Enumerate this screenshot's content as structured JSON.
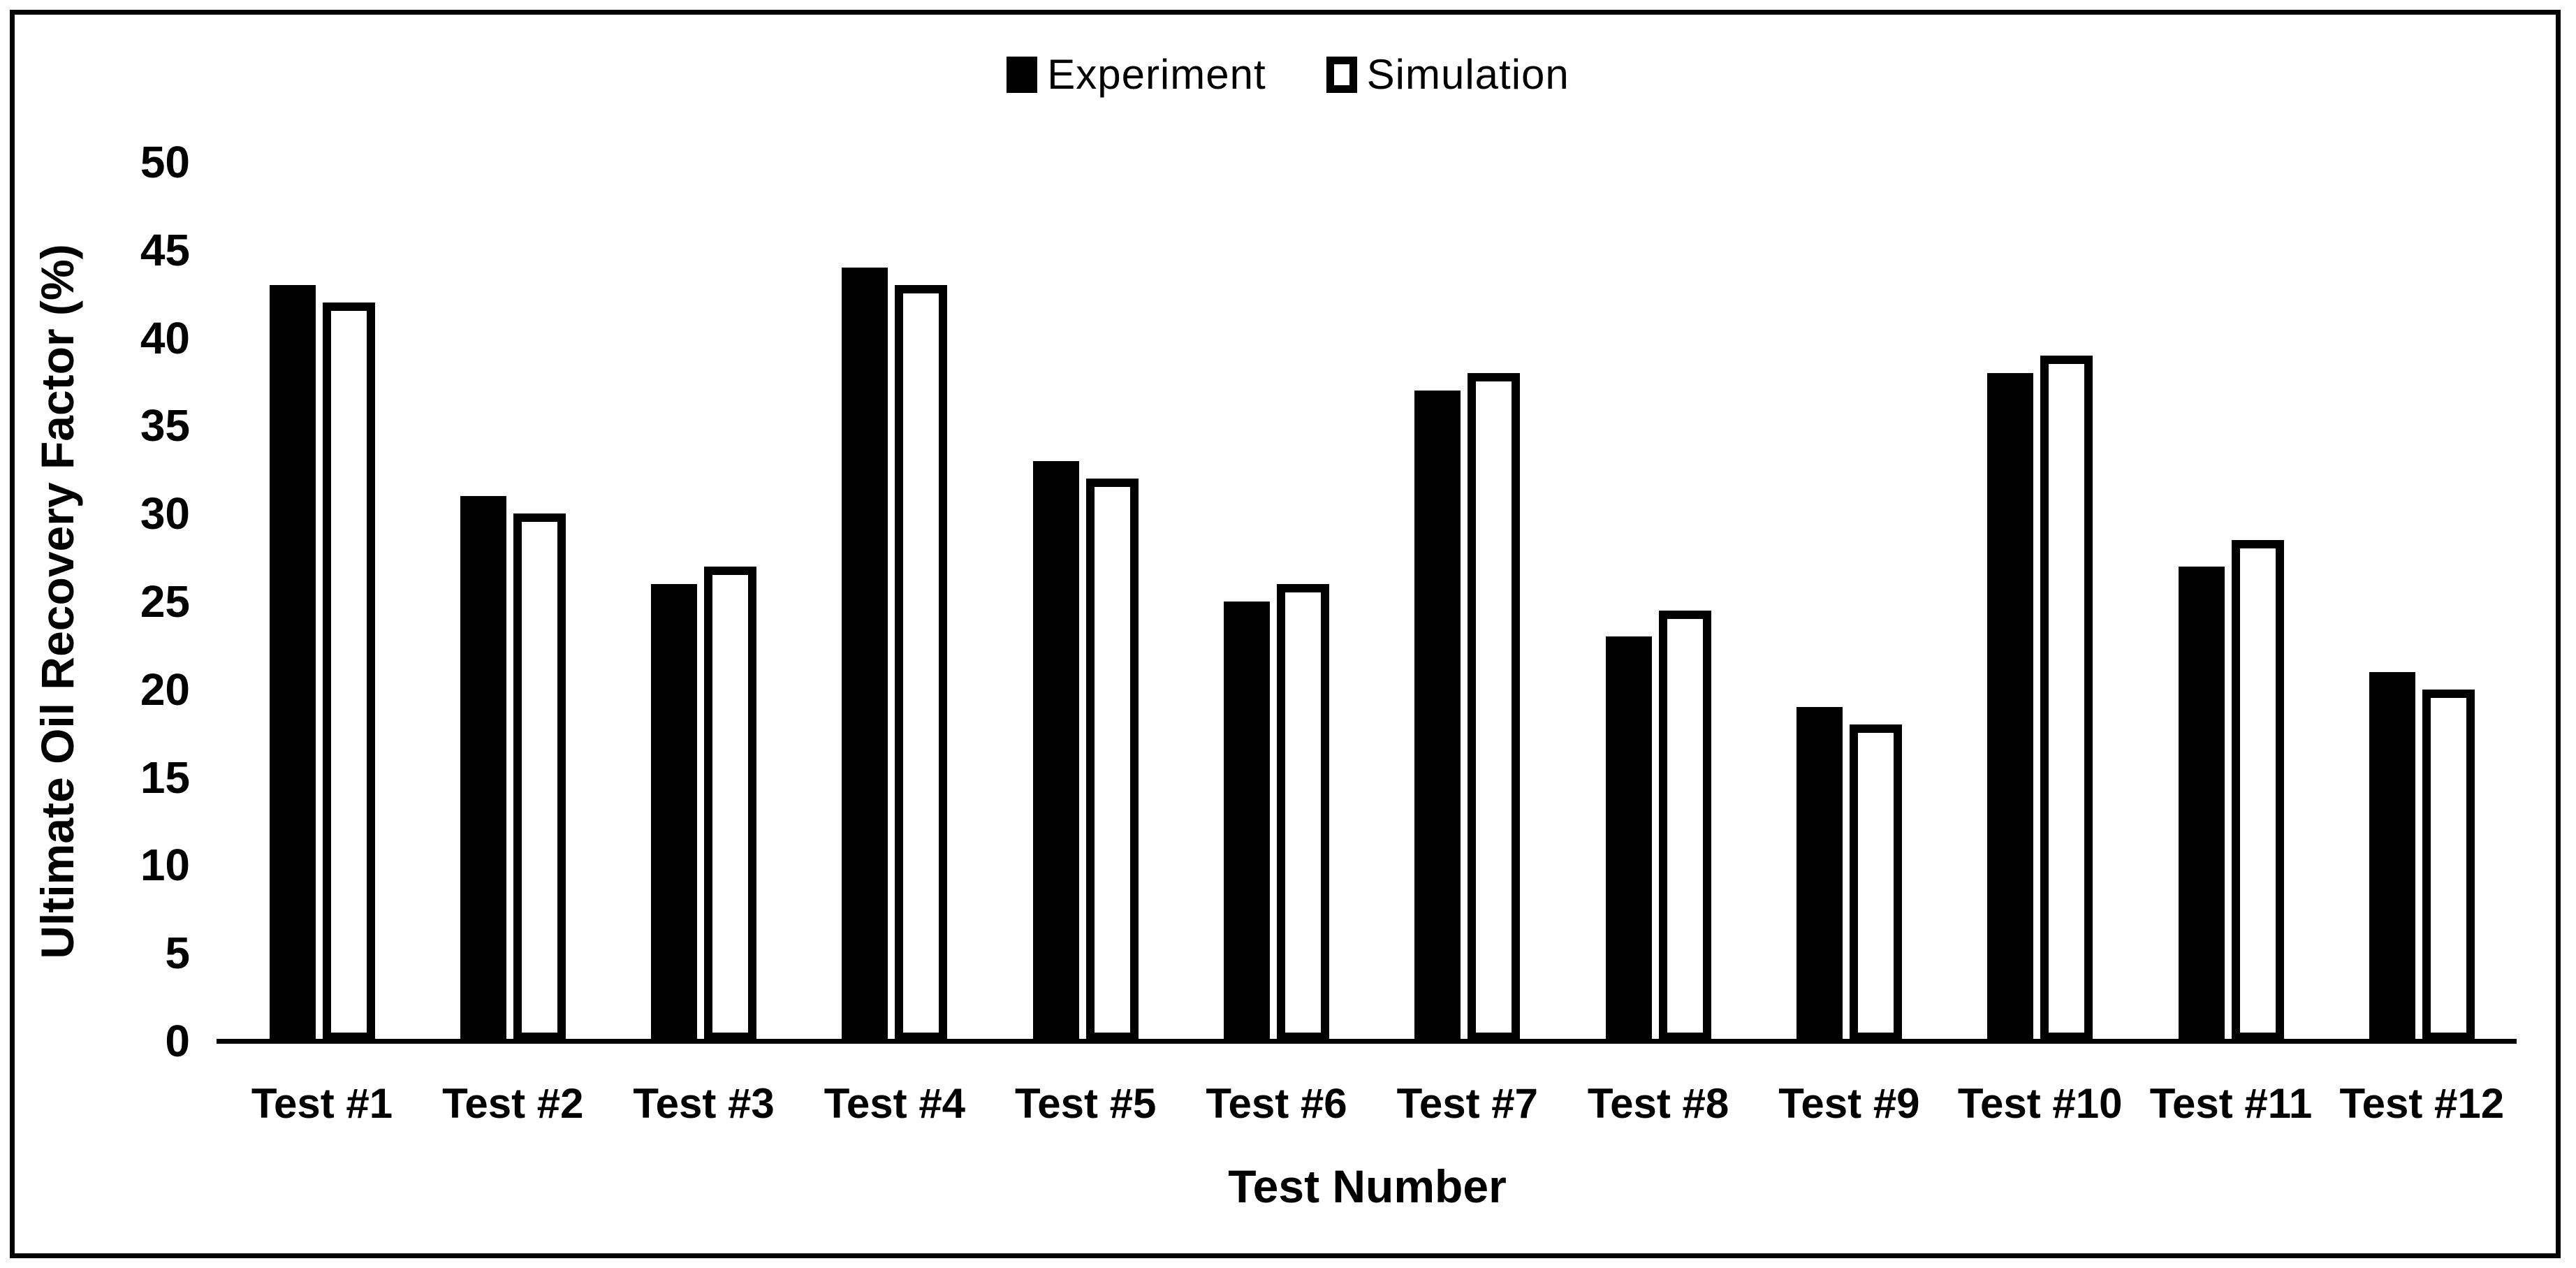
{
  "chart_data": {
    "type": "bar",
    "title": "",
    "categories": [
      "Test #1",
      "Test #2",
      "Test #3",
      "Test #4",
      "Test #5",
      "Test #6",
      "Test #7",
      "Test #8",
      "Test #9",
      "Test #10",
      "Test #11",
      "Test #12"
    ],
    "series": [
      {
        "name": "Experiment",
        "style": "solid-black",
        "values": [
          43,
          31,
          26,
          44,
          33,
          25,
          37,
          23,
          19,
          38,
          27,
          21
        ]
      },
      {
        "name": "Simulation",
        "style": "white-black-outline",
        "values": [
          42,
          30,
          27,
          43,
          32,
          26,
          38,
          24.5,
          18,
          39,
          28.5,
          20
        ]
      }
    ],
    "xlabel": "Test Number",
    "ylabel": "Ultimate Oil Recovery Factor (%)",
    "ylim": [
      0,
      50
    ],
    "yticks": [
      0,
      5,
      10,
      15,
      20,
      25,
      30,
      35,
      40,
      45,
      50
    ],
    "grid": false,
    "legend_position": "top-center",
    "colors": {
      "experiment": "#000000",
      "simulation_fill": "#ffffff",
      "simulation_border": "#000000",
      "axis": "#000000",
      "background": "#ffffff"
    }
  }
}
